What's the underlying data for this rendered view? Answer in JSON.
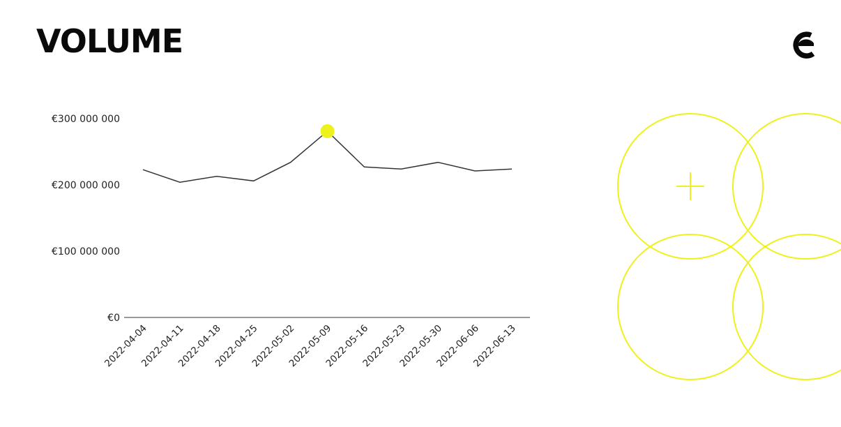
{
  "page": {
    "title": "VOLUME",
    "accent_color": "#eef21c",
    "line_color": "#333333",
    "logo_icon": "brand-c-logo",
    "decoration_icon": "overlapping-circles-plus"
  },
  "chart_data": {
    "type": "line",
    "title": "VOLUME",
    "xlabel": "",
    "ylabel": "",
    "categories": [
      "2022-04-04",
      "2022-04-11",
      "2022-04-18",
      "2022-04-25",
      "2022-05-02",
      "2022-05-09",
      "2022-05-16",
      "2022-05-23",
      "2022-05-30",
      "2022-06-06",
      "2022-06-13"
    ],
    "series": [
      {
        "values": [
          223000000,
          204000000,
          213000000,
          206000000,
          234000000,
          281000000,
          227000000,
          224000000,
          234000000,
          221000000,
          224000000
        ]
      }
    ],
    "highlight_index": 5,
    "y_ticks": [
      {
        "value": 0,
        "label": "€0"
      },
      {
        "value": 100000000,
        "label": "€100 000 000"
      },
      {
        "value": 200000000,
        "label": "€200 000 000"
      },
      {
        "value": 300000000,
        "label": "€300 000 000"
      }
    ],
    "ylim": [
      0,
      300000000
    ],
    "grid": false,
    "legend": "none"
  }
}
